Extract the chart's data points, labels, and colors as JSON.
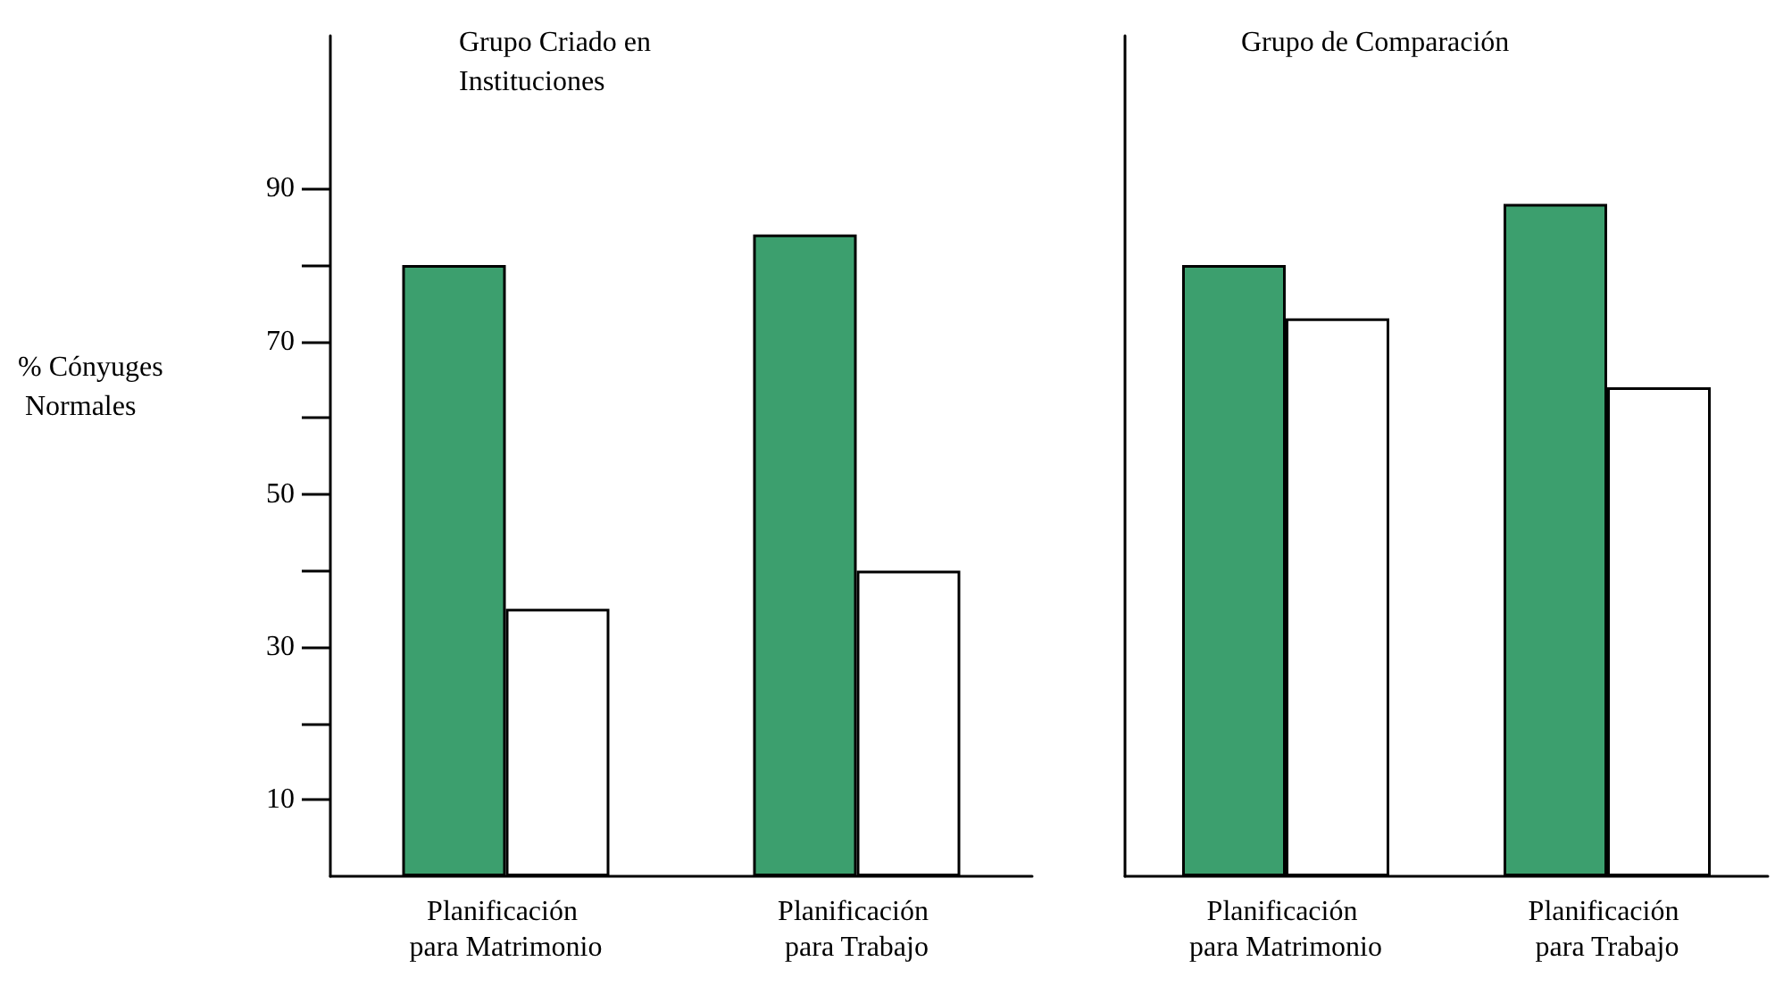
{
  "chart_data": [
    {
      "type": "bar",
      "title": "Grupo Criado en Instituciones",
      "ylabel": "% Cónyuges Normales",
      "categories": [
        "Planificación para Matrimonio",
        "Planificación para Trabajo"
      ],
      "series": [
        {
          "color": "#3c9f6e",
          "values": [
            80,
            84
          ]
        },
        {
          "color": "#ffffff",
          "values": [
            35,
            40
          ]
        }
      ],
      "ylim": [
        0,
        110
      ],
      "yticks": [
        {
          "value": 10,
          "label": "10"
        },
        {
          "value": 20,
          "label": null
        },
        {
          "value": 30,
          "label": "30"
        },
        {
          "value": 40,
          "label": null
        },
        {
          "value": 50,
          "label": "50"
        },
        {
          "value": 60,
          "label": null
        },
        {
          "value": 70,
          "label": "70"
        },
        {
          "value": 80,
          "label": null
        },
        {
          "value": 90,
          "label": "90"
        }
      ],
      "grid": false
    },
    {
      "type": "bar",
      "title": "Grupo de Comparación",
      "categories": [
        "Planificación para Matrimonio",
        "Planificación para Trabajo"
      ],
      "series": [
        {
          "color": "#3c9f6e",
          "values": [
            80,
            88
          ]
        },
        {
          "color": "#ffffff",
          "values": [
            73,
            64
          ]
        }
      ],
      "ylim": [
        0,
        110
      ],
      "tick_labels": "x",
      "grid": false
    }
  ]
}
